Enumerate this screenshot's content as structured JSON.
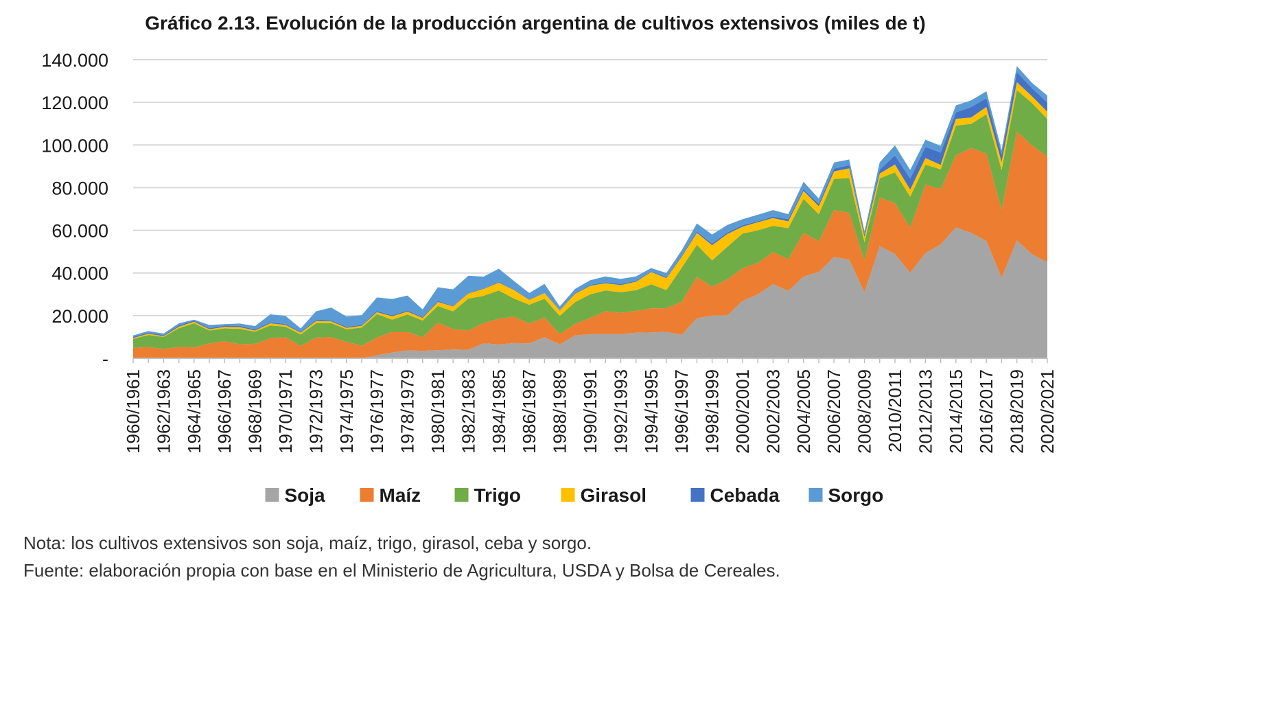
{
  "title": "Gráfico 2.13. Evolución de la producción argentina de cultivos extensivos (miles de t)",
  "note": "Nota: los cultivos extensivos son soja, maíz, trigo, girasol, ceba y sorgo.",
  "source": "Fuente: elaboración propia con base en el Ministerio de Agricultura, USDA y Bolsa de Cereales.",
  "chart_data": {
    "type": "area",
    "stacked": true,
    "grid": true,
    "legend": "bottom",
    "ylim": [
      0,
      140000
    ],
    "yticks": [
      0,
      20000,
      40000,
      60000,
      80000,
      100000,
      120000,
      140000
    ],
    "ytick_labels": [
      "-",
      "20.000",
      "40.000",
      "60.000",
      "80.000",
      "100.000",
      "120.000",
      "140.000"
    ],
    "x": [
      "1960/1961",
      "1961/1962",
      "1962/1963",
      "1963/1964",
      "1964/1965",
      "1965/1966",
      "1966/1967",
      "1967/1968",
      "1968/1969",
      "1969/1970",
      "1970/1971",
      "1971/1972",
      "1972/1973",
      "1973/1974",
      "1974/1975",
      "1975/1976",
      "1976/1977",
      "1977/1978",
      "1978/1979",
      "1979/1980",
      "1980/1981",
      "1981/1982",
      "1982/1983",
      "1983/1984",
      "1984/1985",
      "1985/1986",
      "1986/1987",
      "1987/1988",
      "1988/1989",
      "1989/1990",
      "1990/1991",
      "1991/1992",
      "1992/1993",
      "1993/1994",
      "1994/1995",
      "1995/1996",
      "1996/1997",
      "1997/1998",
      "1998/1999",
      "1999/2000",
      "2000/2001",
      "2001/2002",
      "2002/2003",
      "2003/2004",
      "2004/2005",
      "2005/2006",
      "2006/2007",
      "2007/2008",
      "2008/2009",
      "2009/2010",
      "2010/2011",
      "2011/2012",
      "2012/2013",
      "2013/2014",
      "2014/2015",
      "2015/2016",
      "2016/2017",
      "2017/2018",
      "2018/2019",
      "2019/2020",
      "2020/2021"
    ],
    "xtick_labels": [
      "1960/1961",
      "1962/1963",
      "1964/1965",
      "1966/1967",
      "1968/1969",
      "1970/1971",
      "1972/1973",
      "1974/1975",
      "1976/1977",
      "1978/1979",
      "1980/1981",
      "1982/1983",
      "1984/1985",
      "1986/1987",
      "1988/1989",
      "1990/1991",
      "1992/1993",
      "1994/1995",
      "1996/1997",
      "1998/1999",
      "2000/2001",
      "2002/2003",
      "2004/2005",
      "2006/2007",
      "2008/2009",
      "2010/2011",
      "2012/2013",
      "2014/2015",
      "2016/2017",
      "2018/2019",
      "2020/2021"
    ],
    "series": [
      {
        "name": "Soja",
        "color": "#a5a5a5",
        "values": [
          0,
          0,
          0,
          0,
          0,
          0,
          0,
          0,
          0,
          0,
          0,
          0,
          0,
          0,
          0,
          0,
          1400,
          2700,
          3700,
          3500,
          3800,
          4100,
          4000,
          7000,
          6500,
          7100,
          7000,
          9900,
          6500,
          10700,
          11300,
          11300,
          11300,
          12000,
          12100,
          12400,
          11000,
          18800,
          20000,
          20200,
          26900,
          30000,
          34800,
          31600,
          38300,
          40500,
          47500,
          46200,
          31000,
          52700,
          48900,
          40100,
          49300,
          53400,
          61400,
          58800,
          55000,
          37800,
          55300,
          48800,
          45000
        ]
      },
      {
        "name": "Maíz",
        "color": "#ed7d31",
        "values": [
          4900,
          5200,
          4400,
          5300,
          5100,
          7000,
          8000,
          6600,
          6800,
          9400,
          9900,
          5800,
          9700,
          9900,
          7700,
          5900,
          8300,
          9700,
          8700,
          6400,
          12900,
          9600,
          9000,
          9500,
          12100,
          12400,
          9300,
          9200,
          4900,
          5400,
          7700,
          10700,
          10000,
          10200,
          11300,
          11100,
          15500,
          19400,
          13500,
          16800,
          15400,
          14700,
          15000,
          14900,
          20500,
          14400,
          22000,
          22000,
          15000,
          22700,
          23800,
          21200,
          32100,
          26000,
          33800,
          39800,
          41000,
          32000,
          51000,
          51000,
          49600
        ]
      },
      {
        "name": "Trigo",
        "color": "#70ad47",
        "values": [
          4200,
          5700,
          5600,
          8800,
          11300,
          6000,
          6000,
          7200,
          5700,
          6000,
          4900,
          5400,
          6700,
          6600,
          5900,
          8500,
          11000,
          5700,
          8100,
          7800,
          7800,
          8300,
          15000,
          12800,
          13200,
          8500,
          8800,
          8800,
          8500,
          10200,
          11000,
          9800,
          9700,
          9700,
          11300,
          8500,
          15900,
          15000,
          12400,
          15300,
          16200,
          15300,
          12300,
          14500,
          16000,
          12600,
          14600,
          16300,
          8400,
          9000,
          14500,
          14500,
          9400,
          9200,
          13900,
          11300,
          18400,
          18500,
          19500,
          19800,
          17600
        ]
      },
      {
        "name": "Girasol",
        "color": "#ffc000",
        "values": [
          400,
          600,
          400,
          700,
          800,
          600,
          700,
          800,
          500,
          1000,
          800,
          800,
          1000,
          800,
          700,
          800,
          900,
          1600,
          1400,
          1200,
          1900,
          2300,
          2400,
          3200,
          3700,
          4000,
          2300,
          2700,
          2500,
          3900,
          4000,
          3400,
          3300,
          4000,
          5800,
          5600,
          5200,
          5600,
          7100,
          6000,
          3200,
          3800,
          3700,
          3200,
          3700,
          3800,
          3500,
          4600,
          2500,
          2200,
          3700,
          3300,
          3100,
          2100,
          3200,
          3000,
          3500,
          3700,
          3700,
          3200,
          3400
        ]
      },
      {
        "name": "Cebada",
        "color": "#4472c4",
        "values": [
          500,
          500,
          400,
          600,
          500,
          500,
          600,
          600,
          500,
          500,
          500,
          400,
          500,
          500,
          500,
          400,
          500,
          500,
          500,
          400,
          500,
          200,
          300,
          200,
          300,
          200,
          200,
          200,
          200,
          300,
          400,
          500,
          500,
          400,
          300,
          400,
          500,
          600,
          800,
          700,
          700,
          500,
          700,
          1000,
          800,
          1100,
          1300,
          1500,
          1100,
          1800,
          4200,
          5200,
          5200,
          5800,
          3000,
          4900,
          4000,
          3600,
          4700,
          3800,
          4300
        ]
      },
      {
        "name": "Sorgo",
        "color": "#5b9bd5",
        "values": [
          700,
          800,
          800,
          1000,
          400,
          1500,
          700,
          1100,
          1600,
          3700,
          3800,
          1600,
          4100,
          6000,
          4800,
          4600,
          6400,
          7600,
          7000,
          3600,
          6400,
          7800,
          8000,
          5600,
          6200,
          4000,
          3000,
          4100,
          1700,
          2000,
          2200,
          2700,
          2400,
          2100,
          1500,
          2000,
          2500,
          3800,
          4200,
          3500,
          2800,
          3000,
          3000,
          2400,
          3500,
          2500,
          2900,
          2600,
          1400,
          3500,
          4700,
          4000,
          3400,
          3100,
          3300,
          3100,
          3300,
          2000,
          2800,
          2500,
          3300
        ]
      }
    ]
  }
}
